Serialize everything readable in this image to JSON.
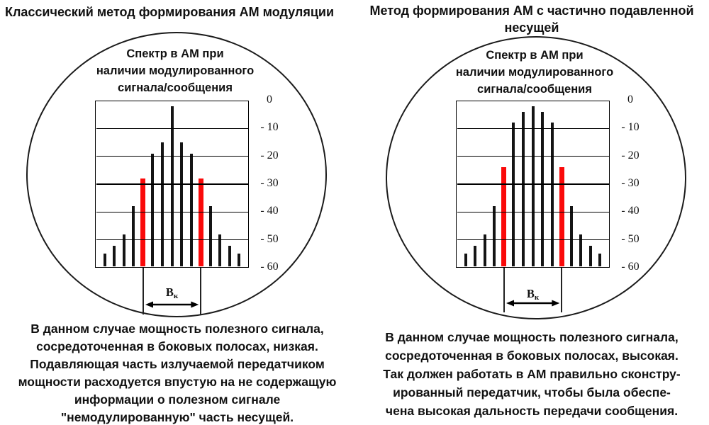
{
  "page": {
    "background": "#ffffff"
  },
  "colors": {
    "bar_black": "#141414",
    "bar_red": "#fa0a0a",
    "line": "#000000",
    "text": "#111111"
  },
  "panels": [
    {
      "title_lines": [
        "Классический метод формирования АМ модуляции"
      ],
      "circle_title_lines": [
        "Спектр в АМ при",
        "наличии модулированного",
        "сигнала/сообщения"
      ],
      "bandwidth_label": {
        "main": "B",
        "sub": "к"
      },
      "caption_lines": [
        "В данном случае мощность полезного сигнала,",
        "сосредоточенная в боковых полосах, низкая.",
        "Подавляющая часть излучаемой передатчиком",
        "мощности расходуется впустую на не содержащую",
        "информации о полезном сигнале",
        "\"немодулированную\" часть несущей."
      ]
    },
    {
      "title_lines": [
        "Метод формирования АМ с частично подавленной",
        "несущей"
      ],
      "circle_title_lines": [
        "Спектр в АМ при",
        "наличии модулированного",
        "сигнала/сообщения"
      ],
      "bandwidth_label": {
        "main": "B",
        "sub": "к"
      },
      "caption_lines": [
        "В данном случае мощность полезного сигнала,",
        "сосредоточенная в боковых полосах, высокая.",
        "Так должен работать в АМ правильно сконстру-",
        "ированный передатчик, чтобы была обеспе-",
        "чена высокая дальность передачи сообщения."
      ]
    }
  ],
  "chart_data": [
    {
      "type": "bar",
      "title": "Спектр в АМ при наличии модулированного сигнала/сообщения",
      "xlabel": "",
      "ylabel": "",
      "ylim": [
        -60,
        0
      ],
      "grid": "horizontal",
      "ytick_labels": [
        "0",
        "- 10",
        "- 20",
        "- 30",
        "- 40",
        "- 50",
        "- 60"
      ],
      "values": [
        -55,
        -52,
        -48,
        -38,
        -28,
        -19,
        -15,
        -2,
        -15,
        -19,
        -28,
        -38,
        -48,
        -52,
        -55
      ],
      "highlight_indices": [
        4,
        10
      ],
      "highlight_meaning": "границы полосы Bк (боковые составляющие)",
      "annotation": "Bк"
    },
    {
      "type": "bar",
      "title": "Спектр в АМ при наличии модулированного сигнала/сообщения",
      "xlabel": "",
      "ylabel": "",
      "ylim": [
        -60,
        0
      ],
      "grid": "horizontal",
      "ytick_labels": [
        "0",
        "- 10",
        "- 20",
        "- 30",
        "- 40",
        "- 50",
        "- 60"
      ],
      "values": [
        -55,
        -52,
        -48,
        -38,
        -24,
        -8,
        -4,
        -2,
        -4,
        -8,
        -24,
        -38,
        -48,
        -52,
        -55
      ],
      "highlight_indices": [
        4,
        10
      ],
      "highlight_meaning": "границы полосы Bк (боковые составляющие)",
      "annotation": "Bк"
    }
  ]
}
